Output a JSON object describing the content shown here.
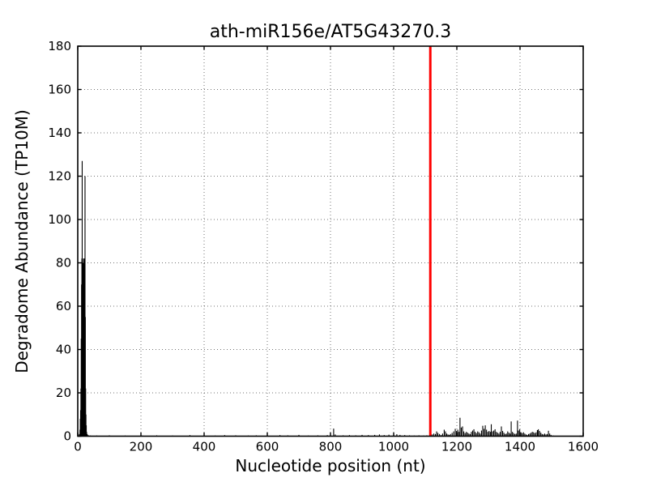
{
  "figure": {
    "background_color": "#ffffff",
    "axis_color": "#000000"
  },
  "chart_data": {
    "type": "line",
    "title": "ath-miR156e/AT5G43270.3",
    "xlabel": "Nucleotide position (nt)",
    "ylabel": "Degradome Abundance (TP10M)",
    "xlim": [
      0,
      1600
    ],
    "ylim": [
      0,
      180
    ],
    "xticks": [
      0,
      200,
      400,
      600,
      800,
      1000,
      1200,
      1400,
      1600
    ],
    "yticks": [
      0,
      20,
      40,
      60,
      80,
      100,
      120,
      140,
      160,
      180
    ],
    "grid": "dotted",
    "legend": "none",
    "series": [
      {
        "name": "degradome-abundance",
        "color": "#000000",
        "style": "vertical-spikes",
        "points": [
          [
            2,
            0.4
          ],
          [
            5,
            1
          ],
          [
            7,
            3
          ],
          [
            8,
            8
          ],
          [
            9,
            12
          ],
          [
            10,
            22
          ],
          [
            11,
            45
          ],
          [
            12,
            70
          ],
          [
            13,
            82
          ],
          [
            14,
            127
          ],
          [
            15,
            75
          ],
          [
            16,
            80
          ],
          [
            17,
            78
          ],
          [
            18,
            82
          ],
          [
            19,
            76
          ],
          [
            20,
            80
          ],
          [
            21,
            82
          ],
          [
            22,
            78
          ],
          [
            23,
            120
          ],
          [
            24,
            55
          ],
          [
            25,
            22
          ],
          [
            26,
            10
          ],
          [
            27,
            5
          ],
          [
            28,
            2
          ],
          [
            30,
            1
          ],
          [
            33,
            0.5
          ],
          [
            40,
            0.3
          ],
          [
            60,
            0.3
          ],
          [
            100,
            0.4
          ],
          [
            150,
            0.3
          ],
          [
            205,
            0.3
          ],
          [
            250,
            0.4
          ],
          [
            300,
            0.3
          ],
          [
            355,
            0.5
          ],
          [
            400,
            0.4
          ],
          [
            435,
            0.3
          ],
          [
            465,
            0.5
          ],
          [
            500,
            0.4
          ],
          [
            540,
            0.3
          ],
          [
            565,
            0.4
          ],
          [
            600,
            0.3
          ],
          [
            640,
            0.5
          ],
          [
            665,
            0.4
          ],
          [
            700,
            0.6
          ],
          [
            730,
            0.3
          ],
          [
            760,
            0.4
          ],
          [
            790,
            0.5
          ],
          [
            810,
            3.5
          ],
          [
            815,
            0.8
          ],
          [
            840,
            0.4
          ],
          [
            860,
            0.5
          ],
          [
            880,
            0.4
          ],
          [
            900,
            0.6
          ],
          [
            920,
            0.5
          ],
          [
            940,
            0.6
          ],
          [
            955,
            0.8
          ],
          [
            970,
            0.5
          ],
          [
            985,
            0.7
          ],
          [
            1000,
            0.6
          ],
          [
            1010,
            0.9
          ],
          [
            1020,
            0.6
          ],
          [
            1035,
            0.5
          ],
          [
            1050,
            0.4
          ],
          [
            1065,
            0.3
          ],
          [
            1080,
            0.4
          ],
          [
            1095,
            0.3
          ],
          [
            1105,
            0.4
          ],
          [
            1122,
            0.8
          ],
          [
            1127,
            1.2
          ],
          [
            1132,
            1
          ],
          [
            1136,
            2.2
          ],
          [
            1140,
            1.5
          ],
          [
            1145,
            1
          ],
          [
            1150,
            0.6
          ],
          [
            1155,
            1.2
          ],
          [
            1160,
            3
          ],
          [
            1164,
            2.2
          ],
          [
            1168,
            1.2
          ],
          [
            1172,
            0.8
          ],
          [
            1176,
            0.6
          ],
          [
            1180,
            1
          ],
          [
            1185,
            1.5
          ],
          [
            1190,
            2.2
          ],
          [
            1195,
            3.4
          ],
          [
            1199,
            2.4
          ],
          [
            1203,
            3
          ],
          [
            1207,
            2
          ],
          [
            1210,
            8.5
          ],
          [
            1214,
            4
          ],
          [
            1218,
            4.5
          ],
          [
            1222,
            2.2
          ],
          [
            1226,
            1.4
          ],
          [
            1230,
            2
          ],
          [
            1234,
            1.6
          ],
          [
            1238,
            1.2
          ],
          [
            1242,
            1
          ],
          [
            1246,
            2
          ],
          [
            1250,
            2.6
          ],
          [
            1254,
            3.2
          ],
          [
            1258,
            2
          ],
          [
            1262,
            1.4
          ],
          [
            1266,
            2.2
          ],
          [
            1270,
            1.8
          ],
          [
            1274,
            1.2
          ],
          [
            1278,
            2.6
          ],
          [
            1282,
            4.8
          ],
          [
            1286,
            3.4
          ],
          [
            1290,
            5
          ],
          [
            1294,
            3
          ],
          [
            1298,
            2
          ],
          [
            1302,
            2.4
          ],
          [
            1306,
            2
          ],
          [
            1309,
            5.5
          ],
          [
            1313,
            2.2
          ],
          [
            1317,
            2.6
          ],
          [
            1321,
            3.2
          ],
          [
            1325,
            2
          ],
          [
            1329,
            1.6
          ],
          [
            1333,
            1.2
          ],
          [
            1337,
            2
          ],
          [
            1341,
            4.5
          ],
          [
            1345,
            2.4
          ],
          [
            1349,
            1.6
          ],
          [
            1353,
            1
          ],
          [
            1357,
            1.2
          ],
          [
            1361,
            2.2
          ],
          [
            1365,
            1.6
          ],
          [
            1369,
            1.2
          ],
          [
            1372,
            6.8
          ],
          [
            1376,
            2
          ],
          [
            1380,
            1.4
          ],
          [
            1384,
            1
          ],
          [
            1388,
            1.2
          ],
          [
            1392,
            7.2
          ],
          [
            1395,
            2.6
          ],
          [
            1399,
            3.2
          ],
          [
            1403,
            1.8
          ],
          [
            1407,
            1.4
          ],
          [
            1411,
            1.8
          ],
          [
            1415,
            1.2
          ],
          [
            1419,
            0.8
          ],
          [
            1423,
            0.6
          ],
          [
            1427,
            1
          ],
          [
            1431,
            1.2
          ],
          [
            1435,
            1.6
          ],
          [
            1439,
            2
          ],
          [
            1443,
            1.8
          ],
          [
            1447,
            1.4
          ],
          [
            1451,
            1.8
          ],
          [
            1455,
            2.8
          ],
          [
            1458,
            3.2
          ],
          [
            1462,
            2.4
          ],
          [
            1466,
            1.6
          ],
          [
            1470,
            1
          ],
          [
            1474,
            0.8
          ],
          [
            1478,
            1.2
          ],
          [
            1482,
            0.8
          ],
          [
            1486,
            1
          ],
          [
            1490,
            2.5
          ],
          [
            1494,
            1.2
          ],
          [
            1498,
            0.6
          ],
          [
            1505,
            0.3
          ],
          [
            1515,
            0.2
          ],
          [
            1525,
            0.15
          ],
          [
            1540,
            0.1
          ]
        ]
      }
    ],
    "marker_line": {
      "x": 1116,
      "color": "#ff0000",
      "width": 3
    },
    "grid_color": "#000000",
    "grid_opacity": 0.55
  }
}
